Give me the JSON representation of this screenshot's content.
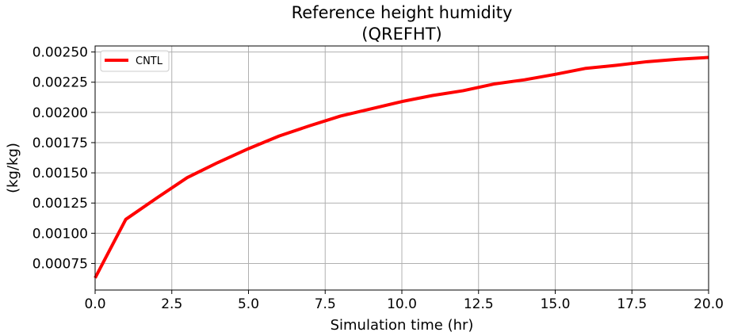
{
  "chart_data": {
    "type": "line",
    "title": "Reference height humidity",
    "subtitle": "(QREFHT)",
    "xlabel": "Simulation time (hr)",
    "ylabel": "(kg/kg)",
    "xlim": [
      0,
      20
    ],
    "ylim": [
      0.00053,
      0.00255
    ],
    "xticks": [
      "0.0",
      "2.5",
      "5.0",
      "7.5",
      "10.0",
      "12.5",
      "15.0",
      "17.5",
      "20.0"
    ],
    "yticks": [
      "0.00075",
      "0.00100",
      "0.00125",
      "0.00150",
      "0.00175",
      "0.00200",
      "0.00225",
      "0.00250"
    ],
    "grid": true,
    "legend_position": "upper-left",
    "series": [
      {
        "name": "CNTL",
        "color": "#ff0000",
        "x": [
          0,
          1,
          2,
          3,
          4,
          5,
          6,
          7,
          8,
          9,
          10,
          11,
          12,
          13,
          14,
          15,
          16,
          17,
          18,
          19,
          20
        ],
        "y": [
          0.00063,
          0.001115,
          0.00129,
          0.00146,
          0.001585,
          0.0017,
          0.001805,
          0.00189,
          0.00197,
          0.00203,
          0.00209,
          0.00214,
          0.00218,
          0.002235,
          0.00227,
          0.002315,
          0.002365,
          0.00239,
          0.00242,
          0.00244,
          0.002455
        ]
      }
    ]
  }
}
